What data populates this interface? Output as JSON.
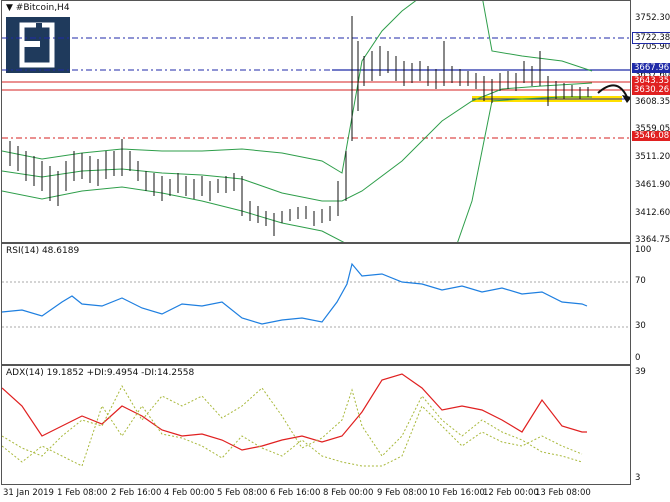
{
  "main": {
    "title": "#Bitcoin,H4",
    "y_labels": [
      "3752.30",
      "3722.38",
      "3705.90",
      "3657.60",
      "3608.35",
      "3559.05",
      "3511.20",
      "3461.90",
      "3412.60",
      "3364.75"
    ],
    "tags": [
      {
        "text": "3722.38",
        "color": "#111111",
        "bg": "#ffffff"
      },
      {
        "text": "3667.96",
        "color": "#ffffff",
        "bg": "#1f2aa8"
      },
      {
        "text": "3643.35",
        "color": "#ffffff",
        "bg": "#e02020"
      },
      {
        "text": "3630.26",
        "color": "#ffffff",
        "bg": "#e02020"
      },
      {
        "text": "3546.08",
        "color": "#ffffff",
        "bg": "#e02020"
      }
    ]
  },
  "rsi": {
    "title": "RSI(14) 48.6189",
    "y_labels": [
      "100",
      "70",
      "30",
      "0"
    ]
  },
  "adx": {
    "title": "ADX(14) 19.1852 +DI:9.4954 -DI:14.2558",
    "y_labels": [
      "39",
      "3"
    ]
  },
  "time_labels": [
    "31 Jan 2019",
    "1 Feb 08:00",
    "2 Feb 16:00",
    "4 Feb 00:00",
    "5 Feb 08:00",
    "6 Feb 16:00",
    "8 Feb 00:00",
    "9 Feb 08:00",
    "10 Feb 16:00",
    "12 Feb 00:00",
    "13 Feb 08:00"
  ],
  "colors": {
    "bollinger": "#2e9e4a",
    "rsi_line": "#1e7fe0",
    "adx_line": "#e02020",
    "di_lines": "#a8b83a",
    "support_band": "#ffe000",
    "blue_lines": "#1f2aa8",
    "red_lines": "#d42020"
  },
  "icons": {
    "menu": "triangle-down-icon",
    "arrow": "curved-arrow-icon"
  }
}
